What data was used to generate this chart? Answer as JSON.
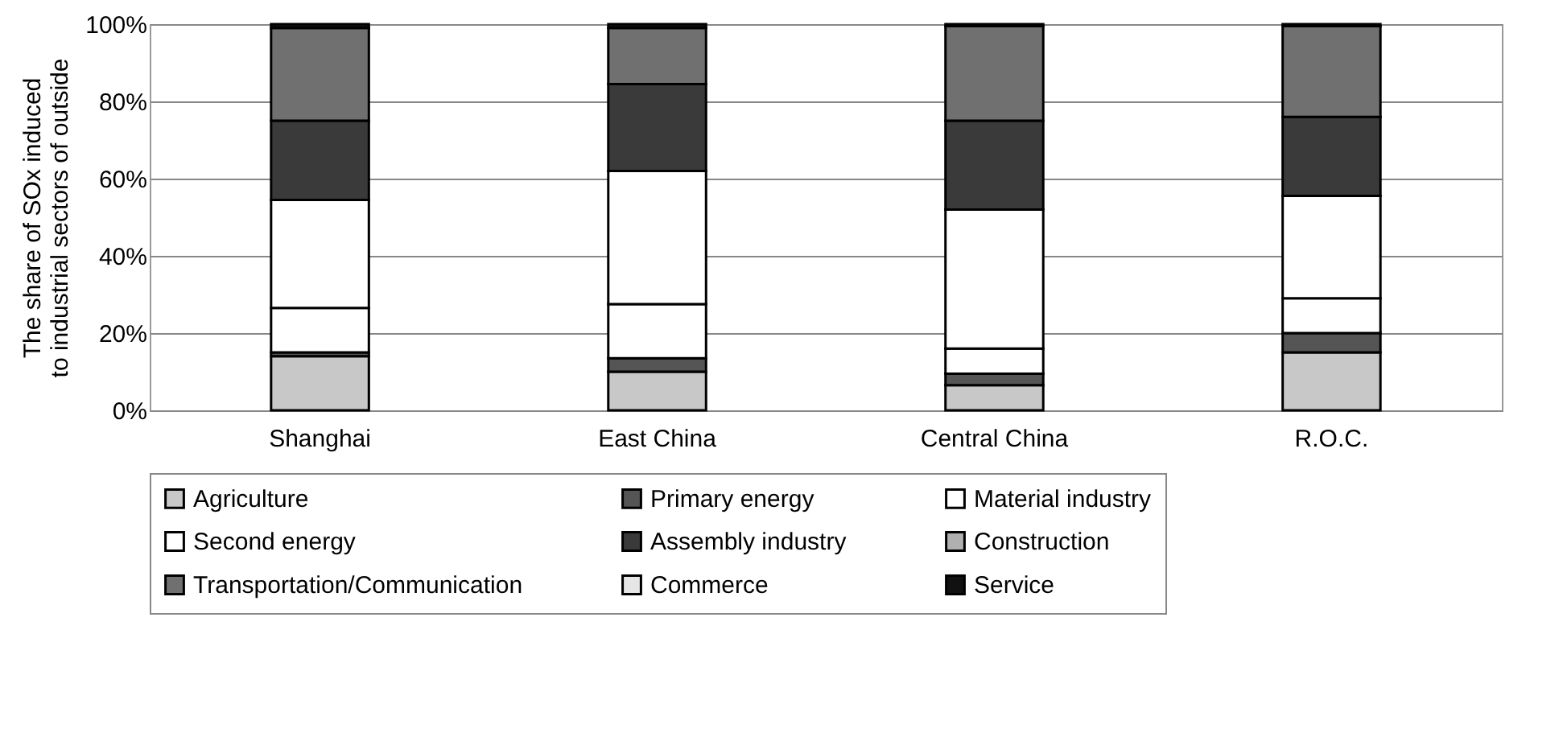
{
  "chart_data": {
    "type": "bar",
    "stacked": true,
    "ylabel": "The share of SOx induced\nto industrial sectors of outside",
    "categories": [
      "Shanghai",
      "East China",
      "Central China",
      "R.O.C."
    ],
    "series": [
      {
        "name": "Agriculture",
        "color": "#c8c8c8",
        "values": [
          14,
          10,
          6.5,
          15
        ]
      },
      {
        "name": "Primary energy",
        "color": "#555555",
        "values": [
          1,
          3.5,
          3,
          5
        ]
      },
      {
        "name": "Material industry",
        "color": "#ffffff",
        "values": [
          11.5,
          14,
          6.5,
          9
        ]
      },
      {
        "name": "Second energy",
        "color": "#ffffff",
        "values": [
          28,
          34.5,
          36,
          26.5
        ]
      },
      {
        "name": "Assembly industry",
        "color": "#3a3a3a",
        "values": [
          20.5,
          22.5,
          23,
          20.5
        ]
      },
      {
        "name": "Construction",
        "color": "#b0b0b0",
        "values": [
          null,
          null,
          null,
          null
        ]
      },
      {
        "name": "Transportation/Communication",
        "color": "#707070",
        "values": [
          24,
          14.5,
          24.5,
          23.5
        ]
      },
      {
        "name": "Commerce",
        "color": "#e6e6e6",
        "values": [
          null,
          null,
          null,
          null
        ]
      },
      {
        "name": "Service",
        "color": "#111111",
        "values": [
          1,
          1,
          0.5,
          0.5
        ]
      }
    ],
    "ylim": [
      0,
      100
    ],
    "yticks": [
      {
        "value": 0,
        "label": "0%"
      },
      {
        "value": 20,
        "label": "20%"
      },
      {
        "value": 40,
        "label": "40%"
      },
      {
        "value": 60,
        "label": "60%"
      },
      {
        "value": 80,
        "label": "80%"
      },
      {
        "value": 100,
        "label": "100%"
      }
    ],
    "grid": "y",
    "legend": "bottom"
  }
}
